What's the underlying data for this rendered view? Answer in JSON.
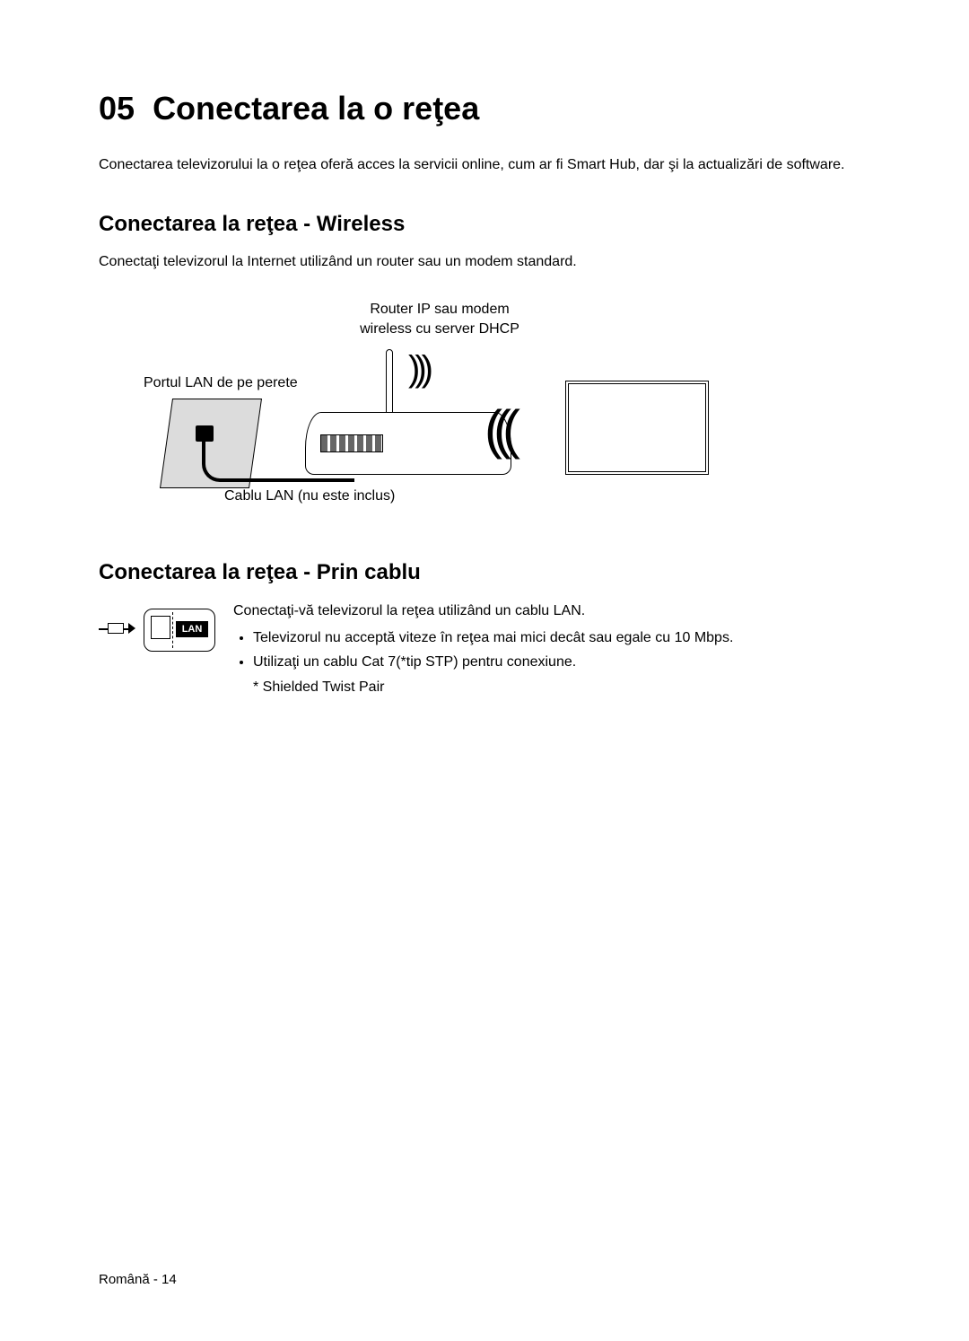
{
  "chapter": {
    "number": "05",
    "title": "Conectarea la o reţea"
  },
  "intro": "Conectarea televizorului la o reţea oferă acces la servicii online, cum ar fi Smart Hub, dar şi la actualizări de software.",
  "wireless": {
    "heading": "Conectarea la reţea - Wireless",
    "desc": "Conectaţi televizorul la Internet utilizând un router sau un modem standard.",
    "router_label_line1": "Router IP sau modem",
    "router_label_line2": "wireless cu server DHCP",
    "wall_label": "Portul LAN de pe perete",
    "cable_label": "Cablu LAN (nu este inclus)"
  },
  "wired": {
    "heading": "Conectarea la reţea - Prin cablu",
    "port_label": "LAN",
    "desc": "Conectaţi-vă televizorul la reţea utilizând un cablu LAN.",
    "bullet1": "Televizorul nu acceptă viteze în reţea mai mici decât sau egale cu 10 Mbps.",
    "bullet2": "Utilizaţi un cablu Cat 7(*tip STP) pentru conexiune.",
    "footnote": "* Shielded Twist Pair"
  },
  "footer": "Română - 14",
  "style": {
    "text_color": "#000000",
    "background": "#ffffff",
    "title_fontsize": 36,
    "section_fontsize": 24,
    "body_fontsize": 16
  }
}
